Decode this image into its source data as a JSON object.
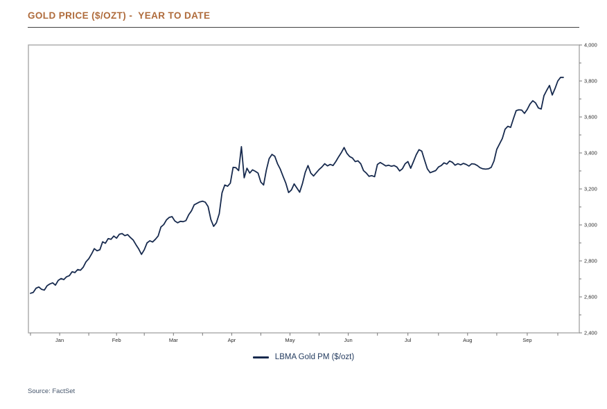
{
  "header": {
    "title": "GOLD PRICE ($/OZT) -  YEAR TO DATE"
  },
  "legend": {
    "series_label": "LBMA Gold PM ($/ozt)"
  },
  "source": {
    "label": "Source: FactSet"
  },
  "colors": {
    "title_text": "#AF6B3B",
    "title_rule": "#3F3F3F",
    "line": "#16294D",
    "frame": "#A9A9A9",
    "tick": "#777777",
    "legend_text": "#223A5E",
    "source_text": "#44546A"
  },
  "chart_data": {
    "type": "line",
    "title": "GOLD PRICE ($/OZT) - YEAR TO DATE",
    "xlabel": "",
    "ylabel": "",
    "grid": false,
    "legend_position": "bottom-center",
    "y_axis": {
      "min": 2400,
      "max": 4000,
      "major_step": 200,
      "minor_step": 100,
      "tick_labels": [
        "4,000",
        "3,800",
        "3,600",
        "3,400",
        "3,200",
        "3,000",
        "2,800",
        "2,600",
        "2,400"
      ],
      "side": "right"
    },
    "x_axis": {
      "labels": [
        "Jan",
        "Feb",
        "Mar",
        "Apr",
        "May",
        "Jun",
        "Jul",
        "Aug",
        "Sep"
      ],
      "month_start_indices": [
        0,
        21,
        41,
        62,
        83,
        104,
        125,
        147,
        168,
        190
      ]
    },
    "series": [
      {
        "name": "LBMA Gold PM ($/ozt)",
        "values": [
          2620,
          2625,
          2648,
          2655,
          2642,
          2638,
          2662,
          2672,
          2678,
          2665,
          2692,
          2702,
          2696,
          2712,
          2718,
          2740,
          2735,
          2752,
          2748,
          2765,
          2795,
          2812,
          2838,
          2868,
          2856,
          2862,
          2906,
          2898,
          2924,
          2920,
          2938,
          2926,
          2948,
          2952,
          2940,
          2946,
          2930,
          2916,
          2890,
          2866,
          2836,
          2862,
          2900,
          2912,
          2905,
          2920,
          2938,
          2988,
          3002,
          3028,
          3042,
          3046,
          3022,
          3012,
          3020,
          3018,
          3024,
          3056,
          3078,
          3112,
          3120,
          3128,
          3132,
          3126,
          3102,
          3030,
          2992,
          3012,
          3062,
          3178,
          3222,
          3215,
          3232,
          3320,
          3318,
          3302,
          3435,
          3262,
          3315,
          3288,
          3306,
          3298,
          3288,
          3238,
          3222,
          3305,
          3368,
          3392,
          3382,
          3340,
          3310,
          3270,
          3232,
          3180,
          3194,
          3228,
          3205,
          3182,
          3230,
          3292,
          3330,
          3288,
          3272,
          3290,
          3308,
          3322,
          3340,
          3328,
          3336,
          3330,
          3352,
          3378,
          3402,
          3430,
          3398,
          3380,
          3372,
          3352,
          3356,
          3340,
          3302,
          3288,
          3270,
          3274,
          3268,
          3336,
          3347,
          3338,
          3328,
          3332,
          3326,
          3330,
          3322,
          3300,
          3312,
          3340,
          3352,
          3315,
          3352,
          3390,
          3418,
          3410,
          3360,
          3312,
          3290,
          3296,
          3302,
          3322,
          3330,
          3345,
          3338,
          3355,
          3348,
          3332,
          3340,
          3334,
          3342,
          3336,
          3327,
          3340,
          3338,
          3330,
          3318,
          3312,
          3310,
          3312,
          3320,
          3355,
          3420,
          3450,
          3480,
          3532,
          3548,
          3542,
          3590,
          3635,
          3640,
          3638,
          3620,
          3642,
          3672,
          3690,
          3678,
          3650,
          3644,
          3718,
          3748,
          3775,
          3722,
          3758,
          3800,
          3820,
          3820
        ]
      }
    ]
  }
}
